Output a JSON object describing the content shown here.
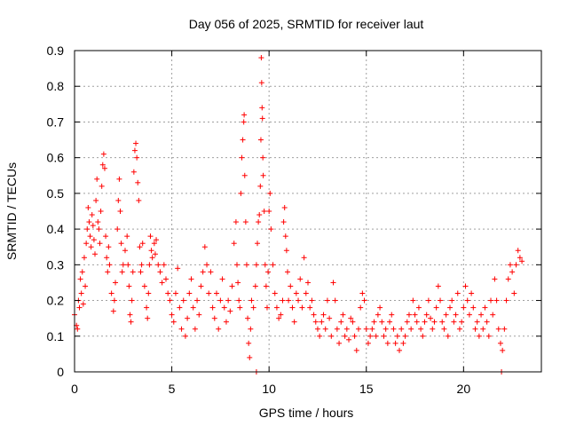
{
  "chart_data": {
    "type": "scatter",
    "title": "Day 056 of 2025, SRMTID for receiver laut",
    "xlabel": "GPS time / hours",
    "ylabel": "SRMTID / TECUs",
    "xlim": [
      0,
      24
    ],
    "ylim": [
      0,
      0.9
    ],
    "xticks": [
      0,
      5,
      10,
      15,
      20
    ],
    "yticks": [
      0,
      0.1,
      0.2,
      0.3,
      0.4,
      0.5,
      0.6,
      0.7,
      0.8,
      0.9
    ],
    "xtick_labels": [
      "0",
      "5",
      "10",
      "15",
      "20"
    ],
    "ytick_labels": [
      "0",
      "0.1",
      "0.2",
      "0.3",
      "0.4",
      "0.5",
      "0.6",
      "0.7",
      "0.8",
      "0.9"
    ],
    "grid": true,
    "marker": "plus",
    "color": "#ff0000",
    "series": [
      {
        "name": "SRMTID",
        "points": [
          [
            0.0,
            0.16
          ],
          [
            0.1,
            0.13
          ],
          [
            0.15,
            0.12
          ],
          [
            0.2,
            0.2
          ],
          [
            0.25,
            0.18
          ],
          [
            0.3,
            0.26
          ],
          [
            0.35,
            0.22
          ],
          [
            0.4,
            0.28
          ],
          [
            0.45,
            0.19
          ],
          [
            0.5,
            0.32
          ],
          [
            0.55,
            0.24
          ],
          [
            0.6,
            0.36
          ],
          [
            0.65,
            0.4
          ],
          [
            0.7,
            0.46
          ],
          [
            0.75,
            0.42
          ],
          [
            0.8,
            0.38
          ],
          [
            0.85,
            0.35
          ],
          [
            0.9,
            0.44
          ],
          [
            0.95,
            0.41
          ],
          [
            1.0,
            0.37
          ],
          [
            1.05,
            0.33
          ],
          [
            1.1,
            0.48
          ],
          [
            1.15,
            0.54
          ],
          [
            1.2,
            0.42
          ],
          [
            1.25,
            0.4
          ],
          [
            1.3,
            0.36
          ],
          [
            1.35,
            0.45
          ],
          [
            1.4,
            0.52
          ],
          [
            1.45,
            0.58
          ],
          [
            1.5,
            0.61
          ],
          [
            1.55,
            0.57
          ],
          [
            1.6,
            0.38
          ],
          [
            1.65,
            0.32
          ],
          [
            1.7,
            0.28
          ],
          [
            1.75,
            0.35
          ],
          [
            1.8,
            0.3
          ],
          [
            1.9,
            0.22
          ],
          [
            2.0,
            0.17
          ],
          [
            2.05,
            0.2
          ],
          [
            2.1,
            0.25
          ],
          [
            2.2,
            0.4
          ],
          [
            2.25,
            0.48
          ],
          [
            2.3,
            0.54
          ],
          [
            2.35,
            0.45
          ],
          [
            2.4,
            0.36
          ],
          [
            2.45,
            0.28
          ],
          [
            2.5,
            0.3
          ],
          [
            2.6,
            0.34
          ],
          [
            2.7,
            0.38
          ],
          [
            2.75,
            0.3
          ],
          [
            2.8,
            0.24
          ],
          [
            2.85,
            0.16
          ],
          [
            2.9,
            0.14
          ],
          [
            2.95,
            0.2
          ],
          [
            3.0,
            0.28
          ],
          [
            3.05,
            0.56
          ],
          [
            3.1,
            0.62
          ],
          [
            3.15,
            0.64
          ],
          [
            3.2,
            0.6
          ],
          [
            3.25,
            0.53
          ],
          [
            3.3,
            0.48
          ],
          [
            3.35,
            0.35
          ],
          [
            3.4,
            0.28
          ],
          [
            3.45,
            0.3
          ],
          [
            3.5,
            0.36
          ],
          [
            3.6,
            0.24
          ],
          [
            3.7,
            0.18
          ],
          [
            3.75,
            0.15
          ],
          [
            3.8,
            0.22
          ],
          [
            3.85,
            0.3
          ],
          [
            3.9,
            0.38
          ],
          [
            3.95,
            0.34
          ],
          [
            4.0,
            0.32
          ],
          [
            4.1,
            0.36
          ],
          [
            4.15,
            0.33
          ],
          [
            4.2,
            0.37
          ],
          [
            4.3,
            0.3
          ],
          [
            4.4,
            0.28
          ],
          [
            4.5,
            0.25
          ],
          [
            4.6,
            0.3
          ],
          [
            4.7,
            0.26
          ],
          [
            4.8,
            0.22
          ],
          [
            4.9,
            0.2
          ],
          [
            5.0,
            0.16
          ],
          [
            5.1,
            0.14
          ],
          [
            5.2,
            0.22
          ],
          [
            5.3,
            0.29
          ],
          [
            5.4,
            0.18
          ],
          [
            5.5,
            0.12
          ],
          [
            5.6,
            0.2
          ],
          [
            5.7,
            0.1
          ],
          [
            5.8,
            0.15
          ],
          [
            5.9,
            0.22
          ],
          [
            6.0,
            0.26
          ],
          [
            6.1,
            0.18
          ],
          [
            6.2,
            0.12
          ],
          [
            6.3,
            0.2
          ],
          [
            6.4,
            0.16
          ],
          [
            6.5,
            0.24
          ],
          [
            6.6,
            0.28
          ],
          [
            6.7,
            0.35
          ],
          [
            6.8,
            0.3
          ],
          [
            6.9,
            0.22
          ],
          [
            7.0,
            0.28
          ],
          [
            7.1,
            0.18
          ],
          [
            7.2,
            0.15
          ],
          [
            7.3,
            0.22
          ],
          [
            7.4,
            0.12
          ],
          [
            7.5,
            0.2
          ],
          [
            7.6,
            0.26
          ],
          [
            7.7,
            0.18
          ],
          [
            7.8,
            0.14
          ],
          [
            7.9,
            0.2
          ],
          [
            8.0,
            0.17
          ],
          [
            8.1,
            0.24
          ],
          [
            8.2,
            0.36
          ],
          [
            8.3,
            0.42
          ],
          [
            8.35,
            0.3
          ],
          [
            8.4,
            0.25
          ],
          [
            8.45,
            0.2
          ],
          [
            8.5,
            0.18
          ],
          [
            8.55,
            0.5
          ],
          [
            8.6,
            0.6
          ],
          [
            8.65,
            0.65
          ],
          [
            8.7,
            0.7
          ],
          [
            8.72,
            0.72
          ],
          [
            8.75,
            0.55
          ],
          [
            8.8,
            0.42
          ],
          [
            8.85,
            0.3
          ],
          [
            8.9,
            0.15
          ],
          [
            8.95,
            0.08
          ],
          [
            9.0,
            0.04
          ],
          [
            9.05,
            0.12
          ],
          [
            9.1,
            0.2
          ],
          [
            9.2,
            0.18
          ],
          [
            9.3,
            0.24
          ],
          [
            9.35,
            0.3
          ],
          [
            9.4,
            0.36
          ],
          [
            9.45,
            0.42
          ],
          [
            9.5,
            0.44
          ],
          [
            9.55,
            0.52
          ],
          [
            9.58,
            0.65
          ],
          [
            9.6,
            0.88
          ],
          [
            9.62,
            0.81
          ],
          [
            9.64,
            0.74
          ],
          [
            9.66,
            0.71
          ],
          [
            9.68,
            0.6
          ],
          [
            9.7,
            0.55
          ],
          [
            9.75,
            0.45
          ],
          [
            9.8,
            0.3
          ],
          [
            9.85,
            0.24
          ],
          [
            9.9,
            0.18
          ],
          [
            9.95,
            0.28
          ],
          [
            10.0,
            0.45
          ],
          [
            10.05,
            0.5
          ],
          [
            10.1,
            0.4
          ],
          [
            10.2,
            0.3
          ],
          [
            10.3,
            0.22
          ],
          [
            10.4,
            0.18
          ],
          [
            10.5,
            0.15
          ],
          [
            10.6,
            0.16
          ],
          [
            10.7,
            0.2
          ],
          [
            10.75,
            0.42
          ],
          [
            10.8,
            0.46
          ],
          [
            10.85,
            0.38
          ],
          [
            10.9,
            0.34
          ],
          [
            10.95,
            0.28
          ],
          [
            11.0,
            0.2
          ],
          [
            11.1,
            0.24
          ],
          [
            11.2,
            0.18
          ],
          [
            11.3,
            0.14
          ],
          [
            11.4,
            0.22
          ],
          [
            11.5,
            0.2
          ],
          [
            11.6,
            0.26
          ],
          [
            11.7,
            0.18
          ],
          [
            11.8,
            0.32
          ],
          [
            11.9,
            0.22
          ],
          [
            12.0,
            0.25
          ],
          [
            12.1,
            0.18
          ],
          [
            12.2,
            0.2
          ],
          [
            12.3,
            0.16
          ],
          [
            12.4,
            0.14
          ],
          [
            12.5,
            0.12
          ],
          [
            12.6,
            0.1
          ],
          [
            12.7,
            0.14
          ],
          [
            12.8,
            0.16
          ],
          [
            12.9,
            0.12
          ],
          [
            13.0,
            0.2
          ],
          [
            13.1,
            0.15
          ],
          [
            13.2,
            0.1
          ],
          [
            13.3,
            0.25
          ],
          [
            13.4,
            0.2
          ],
          [
            13.5,
            0.12
          ],
          [
            13.6,
            0.08
          ],
          [
            13.7,
            0.14
          ],
          [
            13.8,
            0.16
          ],
          [
            13.9,
            0.1
          ],
          [
            14.0,
            0.12
          ],
          [
            14.1,
            0.09
          ],
          [
            14.2,
            0.15
          ],
          [
            14.3,
            0.14
          ],
          [
            14.4,
            0.1
          ],
          [
            14.5,
            0.06
          ],
          [
            14.6,
            0.12
          ],
          [
            14.7,
            0.18
          ],
          [
            14.8,
            0.22
          ],
          [
            14.9,
            0.2
          ],
          [
            15.0,
            0.12
          ],
          [
            15.1,
            0.08
          ],
          [
            15.2,
            0.1
          ],
          [
            15.3,
            0.12
          ],
          [
            15.4,
            0.14
          ],
          [
            15.5,
            0.1
          ],
          [
            15.6,
            0.16
          ],
          [
            15.7,
            0.18
          ],
          [
            15.8,
            0.14
          ],
          [
            15.9,
            0.1
          ],
          [
            16.0,
            0.12
          ],
          [
            16.1,
            0.08
          ],
          [
            16.2,
            0.14
          ],
          [
            16.3,
            0.16
          ],
          [
            16.4,
            0.12
          ],
          [
            16.5,
            0.08
          ],
          [
            16.6,
            0.1
          ],
          [
            16.7,
            0.06
          ],
          [
            16.8,
            0.12
          ],
          [
            16.9,
            0.08
          ],
          [
            17.0,
            0.1
          ],
          [
            17.1,
            0.14
          ],
          [
            17.2,
            0.16
          ],
          [
            17.3,
            0.12
          ],
          [
            17.4,
            0.2
          ],
          [
            17.5,
            0.16
          ],
          [
            17.6,
            0.14
          ],
          [
            17.7,
            0.18
          ],
          [
            17.8,
            0.12
          ],
          [
            17.9,
            0.1
          ],
          [
            18.0,
            0.14
          ],
          [
            18.1,
            0.16
          ],
          [
            18.2,
            0.2
          ],
          [
            18.3,
            0.15
          ],
          [
            18.4,
            0.12
          ],
          [
            18.5,
            0.14
          ],
          [
            18.6,
            0.18
          ],
          [
            18.7,
            0.24
          ],
          [
            18.8,
            0.2
          ],
          [
            18.9,
            0.14
          ],
          [
            19.0,
            0.12
          ],
          [
            19.1,
            0.16
          ],
          [
            19.2,
            0.1
          ],
          [
            19.3,
            0.18
          ],
          [
            19.4,
            0.2
          ],
          [
            19.5,
            0.14
          ],
          [
            19.6,
            0.16
          ],
          [
            19.7,
            0.22
          ],
          [
            19.8,
            0.12
          ],
          [
            19.9,
            0.14
          ],
          [
            20.0,
            0.18
          ],
          [
            20.1,
            0.24
          ],
          [
            20.2,
            0.2
          ],
          [
            20.3,
            0.16
          ],
          [
            20.4,
            0.22
          ],
          [
            20.5,
            0.18
          ],
          [
            20.6,
            0.12
          ],
          [
            20.7,
            0.14
          ],
          [
            20.8,
            0.1
          ],
          [
            20.9,
            0.16
          ],
          [
            21.0,
            0.12
          ],
          [
            21.1,
            0.18
          ],
          [
            21.2,
            0.14
          ],
          [
            21.3,
            0.1
          ],
          [
            21.4,
            0.2
          ],
          [
            21.5,
            0.16
          ],
          [
            21.6,
            0.26
          ],
          [
            21.7,
            0.2
          ],
          [
            21.8,
            0.12
          ],
          [
            21.9,
            0.08
          ],
          [
            22.0,
            0.06
          ],
          [
            22.1,
            0.12
          ],
          [
            22.2,
            0.2
          ],
          [
            22.3,
            0.26
          ],
          [
            22.4,
            0.3
          ],
          [
            22.5,
            0.28
          ],
          [
            22.6,
            0.22
          ],
          [
            22.7,
            0.3
          ],
          [
            22.8,
            0.34
          ],
          [
            22.9,
            0.32
          ],
          [
            23.0,
            0.31
          ],
          [
            9.35,
            0.0
          ],
          [
            21.95,
            0.0
          ]
        ]
      }
    ]
  }
}
